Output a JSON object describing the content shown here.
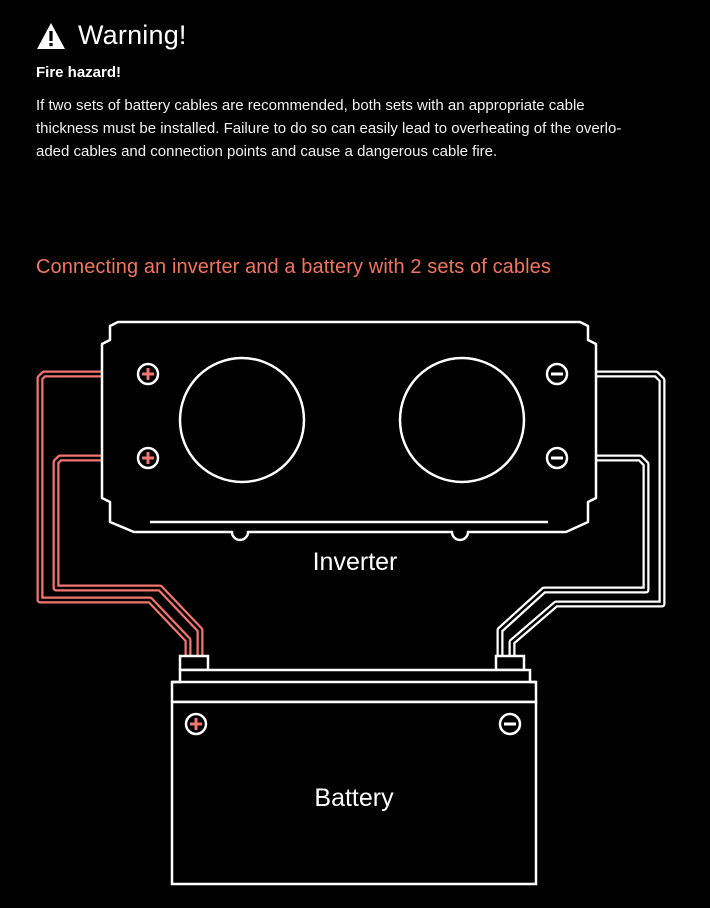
{
  "warning": {
    "title": "Warning!",
    "subtitle": "Fire hazard!",
    "body_lines": [
      "If two sets of battery cables are recommended, both sets with an appropriate cable",
      "thickness must be installed. Failure to do so can easily lead to overheating of the overlo-",
      "aded cables and connection points and cause a dangerous cable fire."
    ]
  },
  "diagram": {
    "title": "Connecting an inverter and a battery with 2 sets of cables",
    "inverter_label": "Inverter",
    "battery_label": "Battery",
    "icons": [
      "warning-triangle-icon",
      "plus-terminal-icon",
      "minus-terminal-icon"
    ],
    "colors": {
      "positive_cable": "#f0766f",
      "negative_cable": "#ffffff",
      "title_accent": "#f0765f"
    }
  }
}
